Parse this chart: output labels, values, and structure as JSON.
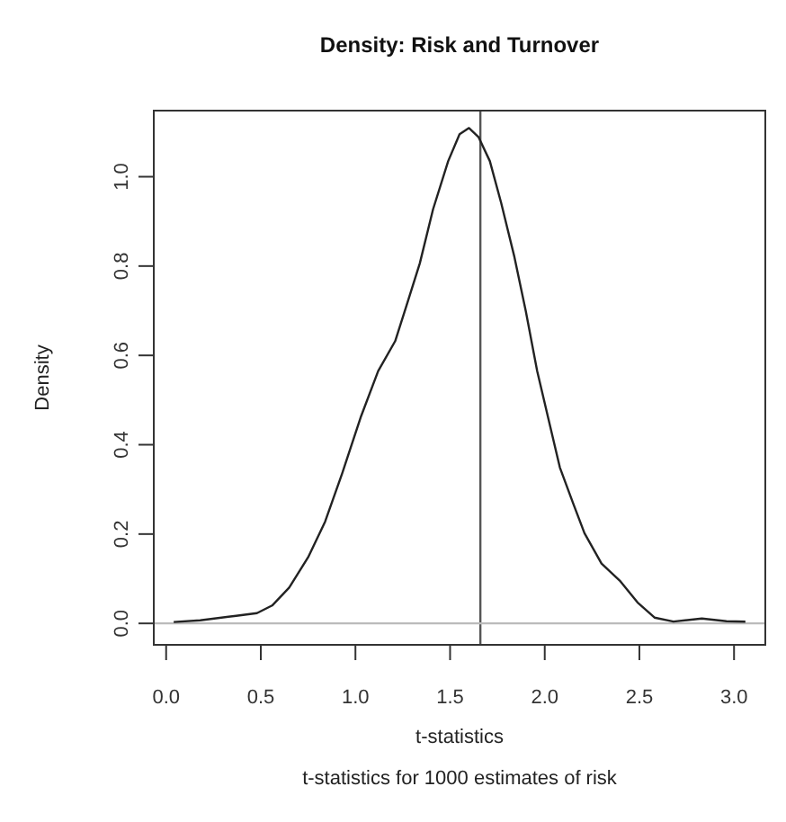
{
  "chart_data": {
    "type": "line",
    "title": "Density: Risk and Turnover",
    "xlabel": "t-statistics",
    "ylabel": "Density",
    "annotations": [
      "t-statistics for 1000 estimates of risk"
    ],
    "xlim": [
      -0.07,
      3.17
    ],
    "ylim": [
      -0.05,
      1.15
    ],
    "xticks": [
      {
        "value": 0,
        "label": "0.0"
      },
      0.5,
      {
        "value": 1,
        "label": "1.0"
      },
      1.5,
      {
        "value": 2,
        "label": "2.0"
      },
      2.5,
      {
        "value": 3,
        "label": "3.0"
      }
    ],
    "yticks": [
      {
        "value": 0,
        "label": "0.0"
      },
      0.2,
      0.4,
      0.6,
      0.8,
      {
        "value": 1,
        "label": "1.0"
      }
    ],
    "grid": false,
    "legend": false,
    "marker": "none",
    "line_style": "solid",
    "ref_lines": [
      {
        "axis": "x",
        "value": 1.66,
        "color": "#555555"
      },
      {
        "axis": "y",
        "value": 0,
        "color": "#bbbbbb"
      }
    ],
    "series": [
      {
        "color": "#222222",
        "x": [
          0.04,
          0.18,
          0.37,
          0.48,
          0.56,
          0.65,
          0.75,
          0.84,
          0.93,
          1.03,
          1.12,
          1.21,
          1.27,
          1.34,
          1.41,
          1.49,
          1.55,
          1.6,
          1.65,
          1.71,
          1.77,
          1.84,
          1.9,
          1.96,
          2.02,
          2.08,
          2.15,
          2.21,
          2.3,
          2.4,
          2.49,
          2.58,
          2.68,
          2.83,
          2.96,
          3.06
        ],
        "values": [
          0.003,
          0.007,
          0.017,
          0.023,
          0.04,
          0.08,
          0.148,
          0.228,
          0.336,
          0.464,
          0.565,
          0.632,
          0.712,
          0.806,
          0.927,
          1.035,
          1.095,
          1.109,
          1.089,
          1.035,
          0.941,
          0.82,
          0.699,
          0.565,
          0.457,
          0.349,
          0.269,
          0.202,
          0.134,
          0.094,
          0.047,
          0.013,
          0.004,
          0.011,
          0.005,
          0.004
        ]
      }
    ]
  }
}
